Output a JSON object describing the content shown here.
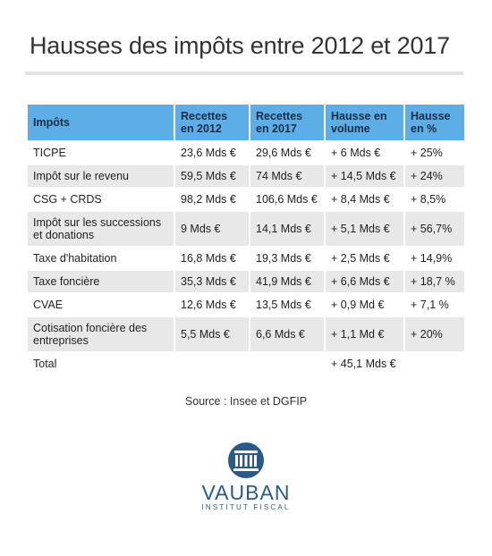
{
  "title": "Hausses des impôts entre 2012 et 2017",
  "table": {
    "headers": [
      [
        "Impôts"
      ],
      [
        "Recettes",
        "en 2012"
      ],
      [
        "Recettes",
        "en 2017"
      ],
      [
        "Hausse en",
        "volume"
      ],
      [
        "Hausse",
        "en %"
      ]
    ],
    "rows": [
      {
        "name": [
          "TICPE"
        ],
        "r2012": "23,6 Mds €",
        "r2017": "29,6 Mds €",
        "volume": "+ 6 Mds €",
        "pct": "+ 25%"
      },
      {
        "name": [
          "Impôt sur le revenu"
        ],
        "r2012": "59,5 Mds €",
        "r2017": "74 Mds €",
        "volume": "+ 14,5 Mds €",
        "pct": "+ 24%"
      },
      {
        "name": [
          "CSG + CRDS"
        ],
        "r2012": "98,2 Mds €",
        "r2017": "106,6 Mds €",
        "volume": "+ 8,4 Mds €",
        "pct": "+ 8,5%"
      },
      {
        "name": [
          "Impôt sur les successions",
          "et donations"
        ],
        "r2012": "9 Mds €",
        "r2017": "14,1 Mds €",
        "volume": "+ 5,1 Mds €",
        "pct": "+ 56,7%"
      },
      {
        "name": [
          "Taxe d'habitation"
        ],
        "r2012": "16,8 Mds €",
        "r2017": "19,3 Mds €",
        "volume": "+ 2,5 Mds €",
        "pct": "+ 14,9%"
      },
      {
        "name": [
          "Taxe foncière"
        ],
        "r2012": "35,3 Mds €",
        "r2017": "41,9 Mds €",
        "volume": "+ 6,6 Mds €",
        "pct": "+ 18,7 %"
      },
      {
        "name": [
          "CVAE"
        ],
        "r2012": "12,6 Mds €",
        "r2017": "13,5 Mds €",
        "volume": "+ 0,9 Md €",
        "pct": "+ 7,1 %"
      },
      {
        "name": [
          "Cotisation foncière des",
          "entreprises"
        ],
        "r2012": "5,5 Mds €",
        "r2017": "6,6 Mds €",
        "volume": "+ 1,1 Md €",
        "pct": "+ 20%"
      }
    ],
    "total": {
      "label": "Total",
      "volume": "+ 45,1 Mds €"
    }
  },
  "source": "Source : Insee et DGFIP",
  "logo": {
    "icon": "building-columns-icon",
    "word": "VAUBAN",
    "subtitle": "INSTITUT FISCAL"
  },
  "colors": {
    "header_bg": "#5daee6",
    "row_stripe": "#e8e8e8",
    "logo_blue": "#2a5a8a"
  }
}
